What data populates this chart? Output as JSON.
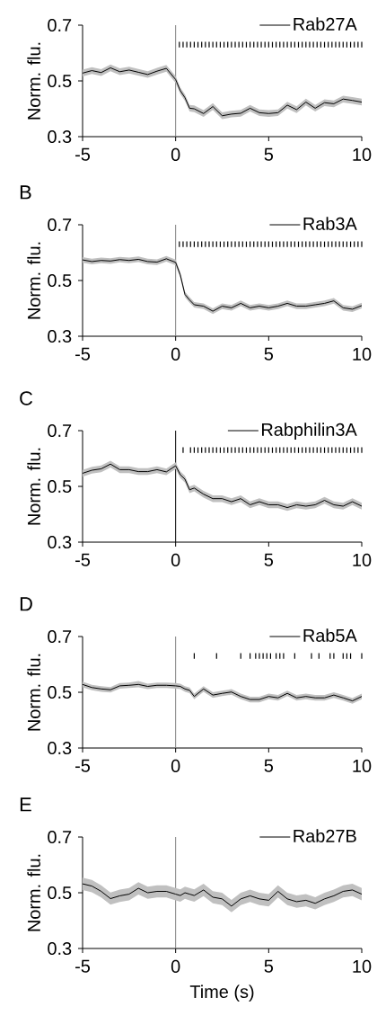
{
  "chart_data": [
    {
      "type": "line",
      "ylabel": "Norm. flu.",
      "legend": "top right",
      "xlim": [
        -5,
        10
      ],
      "ylim": [
        0.3,
        0.7
      ],
      "xticks": [
        -5,
        0,
        5,
        10
      ],
      "yticks": [
        0.3,
        0.5,
        0.7
      ],
      "ref_lines": [
        {
          "axis": "x",
          "value": 0,
          "color": "#808080"
        }
      ],
      "series": [
        {
          "name": "Rab27A",
          "color": "#000000",
          "x": [
            -5,
            -4.5,
            -4,
            -3.5,
            -3,
            -2.5,
            -2,
            -1.5,
            -1,
            -0.5,
            0,
            0.25,
            0.5,
            0.75,
            1,
            1.5,
            2,
            2.5,
            3,
            3.5,
            4,
            4.5,
            5,
            5.5,
            6,
            6.5,
            7,
            7.5,
            8,
            8.5,
            9,
            9.5,
            10
          ],
          "values": [
            0.528,
            0.537,
            0.53,
            0.547,
            0.533,
            0.539,
            0.531,
            0.523,
            0.535,
            0.545,
            0.505,
            0.465,
            0.44,
            0.402,
            0.4,
            0.383,
            0.408,
            0.375,
            0.381,
            0.384,
            0.402,
            0.386,
            0.383,
            0.386,
            0.413,
            0.397,
            0.424,
            0.402,
            0.422,
            0.418,
            0.435,
            0.43,
            0.424
          ],
          "lower": [
            0.516,
            0.525,
            0.518,
            0.535,
            0.521,
            0.527,
            0.519,
            0.511,
            0.523,
            0.533,
            0.493,
            0.453,
            0.428,
            0.39,
            0.388,
            0.371,
            0.396,
            0.363,
            0.369,
            0.372,
            0.39,
            0.374,
            0.371,
            0.374,
            0.401,
            0.385,
            0.412,
            0.39,
            0.41,
            0.406,
            0.423,
            0.418,
            0.412
          ],
          "upper": [
            0.54,
            0.549,
            0.542,
            0.559,
            0.545,
            0.551,
            0.543,
            0.535,
            0.547,
            0.557,
            0.517,
            0.477,
            0.452,
            0.414,
            0.412,
            0.395,
            0.42,
            0.387,
            0.393,
            0.396,
            0.414,
            0.398,
            0.395,
            0.398,
            0.425,
            0.409,
            0.436,
            0.414,
            0.434,
            0.43,
            0.447,
            0.442,
            0.436
          ]
        },
        {
          "type": "bar",
          "color": "#000000",
          "x": [
            0.2,
            0.4,
            0.6,
            0.8,
            1,
            1.2,
            1.4,
            1.6,
            1.8,
            2,
            2.2,
            2.4,
            2.6,
            2.8,
            3,
            3.2,
            3.4,
            3.6,
            3.8,
            4,
            4.2,
            4.4,
            4.6,
            4.8,
            5,
            5.2,
            5.4,
            5.6,
            5.8,
            6,
            6.2,
            6.4,
            6.6,
            6.8,
            7,
            7.2,
            7.4,
            7.6,
            7.8,
            8,
            8.2,
            8.4,
            8.6,
            8.8,
            9,
            9.2,
            9.4,
            9.6,
            9.8,
            10
          ],
          "base": [
            0.62,
            0.62,
            0.62,
            0.62,
            0.62,
            0.62,
            0.62,
            0.62,
            0.62,
            0.62,
            0.62,
            0.62,
            0.62,
            0.62,
            0.62,
            0.62,
            0.62,
            0.62,
            0.62,
            0.62,
            0.62,
            0.62,
            0.62,
            0.62,
            0.62,
            0.62,
            0.62,
            0.62,
            0.62,
            0.62,
            0.62,
            0.62,
            0.62,
            0.62,
            0.62,
            0.62,
            0.62,
            0.62,
            0.62,
            0.62,
            0.62,
            0.62,
            0.62,
            0.62,
            0.62,
            0.62,
            0.62,
            0.62,
            0.62,
            0.62
          ],
          "values": [
            0.02,
            0.02,
            0.02,
            0.02,
            0.02,
            0.02,
            0.02,
            0.02,
            0.02,
            0.02,
            0.02,
            0.02,
            0.02,
            0.02,
            0.02,
            0.02,
            0.02,
            0.02,
            0.02,
            0.02,
            0.02,
            0.02,
            0.02,
            0.02,
            0.02,
            0.02,
            0.02,
            0.02,
            0.02,
            0.02,
            0.02,
            0.02,
            0.02,
            0.02,
            0.02,
            0.02,
            0.02,
            0.02,
            0.02,
            0.02,
            0.02,
            0.02,
            0.02,
            0.02,
            0.02,
            0.02,
            0.02,
            0.02,
            0.02,
            0.02
          ]
        }
      ]
    },
    {
      "type": "line",
      "title": "B",
      "ylabel": "Norm. flu.",
      "legend": "top right",
      "xlim": [
        -5,
        10
      ],
      "ylim": [
        0.3,
        0.7
      ],
      "xticks": [
        -5,
        0,
        5,
        10
      ],
      "yticks": [
        0.3,
        0.5,
        0.7
      ],
      "ref_lines": [
        {
          "axis": "x",
          "value": 0,
          "color": "#808080"
        }
      ],
      "series": [
        {
          "name": "Rab3A",
          "color": "#000000",
          "x": [
            -5,
            -4.5,
            -4,
            -3.5,
            -3,
            -2.5,
            -2,
            -1.5,
            -1,
            -0.5,
            0,
            0.25,
            0.5,
            0.75,
            1,
            1.5,
            2,
            2.5,
            3,
            3.5,
            4,
            4.5,
            5,
            5.5,
            6,
            6.5,
            7,
            7.5,
            8,
            8.5,
            9,
            9.5,
            10
          ],
          "values": [
            0.574,
            0.568,
            0.572,
            0.57,
            0.575,
            0.572,
            0.576,
            0.568,
            0.566,
            0.578,
            0.565,
            0.52,
            0.45,
            0.43,
            0.413,
            0.408,
            0.39,
            0.408,
            0.402,
            0.418,
            0.402,
            0.408,
            0.402,
            0.408,
            0.418,
            0.408,
            0.408,
            0.413,
            0.418,
            0.427,
            0.402,
            0.397,
            0.41
          ],
          "lower": [
            0.564,
            0.558,
            0.562,
            0.56,
            0.565,
            0.562,
            0.566,
            0.558,
            0.556,
            0.568,
            0.555,
            0.51,
            0.44,
            0.42,
            0.403,
            0.398,
            0.38,
            0.398,
            0.392,
            0.408,
            0.392,
            0.398,
            0.392,
            0.398,
            0.408,
            0.398,
            0.398,
            0.403,
            0.408,
            0.417,
            0.392,
            0.387,
            0.4
          ],
          "upper": [
            0.584,
            0.578,
            0.582,
            0.58,
            0.585,
            0.582,
            0.586,
            0.578,
            0.576,
            0.588,
            0.575,
            0.53,
            0.46,
            0.44,
            0.423,
            0.418,
            0.4,
            0.418,
            0.412,
            0.428,
            0.412,
            0.418,
            0.412,
            0.418,
            0.428,
            0.418,
            0.418,
            0.423,
            0.428,
            0.437,
            0.412,
            0.407,
            0.42
          ]
        },
        {
          "type": "bar",
          "color": "#000000",
          "x": [
            0.2,
            0.4,
            0.6,
            0.8,
            1,
            1.2,
            1.4,
            1.6,
            1.8,
            2,
            2.2,
            2.4,
            2.6,
            2.8,
            3,
            3.2,
            3.4,
            3.6,
            3.8,
            4,
            4.2,
            4.4,
            4.6,
            4.8,
            5,
            5.2,
            5.4,
            5.6,
            5.8,
            6,
            6.2,
            6.4,
            6.6,
            6.8,
            7,
            7.2,
            7.4,
            7.6,
            7.8,
            8,
            8.2,
            8.4,
            8.6,
            8.8,
            9,
            9.2,
            9.4,
            9.6,
            9.8,
            10
          ],
          "base": [
            0.62,
            0.62,
            0.62,
            0.62,
            0.62,
            0.62,
            0.62,
            0.62,
            0.62,
            0.62,
            0.62,
            0.62,
            0.62,
            0.62,
            0.62,
            0.62,
            0.62,
            0.62,
            0.62,
            0.62,
            0.62,
            0.62,
            0.62,
            0.62,
            0.62,
            0.62,
            0.62,
            0.62,
            0.62,
            0.62,
            0.62,
            0.62,
            0.62,
            0.62,
            0.62,
            0.62,
            0.62,
            0.62,
            0.62,
            0.62,
            0.62,
            0.62,
            0.62,
            0.62,
            0.62,
            0.62,
            0.62,
            0.62,
            0.62,
            0.62
          ],
          "values": [
            0.02,
            0.02,
            0.02,
            0.02,
            0.02,
            0.02,
            0.02,
            0.02,
            0.02,
            0.02,
            0.02,
            0.02,
            0.02,
            0.02,
            0.02,
            0.02,
            0.02,
            0.02,
            0.02,
            0.02,
            0.02,
            0.02,
            0.02,
            0.02,
            0.02,
            0.02,
            0.02,
            0.02,
            0.02,
            0.02,
            0.02,
            0.02,
            0.02,
            0.02,
            0.02,
            0.02,
            0.02,
            0.02,
            0.02,
            0.02,
            0.02,
            0.02,
            0.02,
            0.02,
            0.02,
            0.02,
            0.02,
            0.02,
            0.02,
            0.02
          ]
        }
      ]
    },
    {
      "type": "line",
      "title": "C",
      "ylabel": "Norm. flu.",
      "legend": "top right",
      "xlim": [
        -5,
        10
      ],
      "ylim": [
        0.3,
        0.7
      ],
      "xticks": [
        -5,
        0,
        5,
        10
      ],
      "yticks": [
        0.3,
        0.5,
        0.7
      ],
      "ref_lines": [
        {
          "axis": "x",
          "value": 0,
          "color": "#000000"
        }
      ],
      "series": [
        {
          "name": "Rabphilin3A",
          "color": "#000000",
          "x": [
            -5,
            -4.5,
            -4,
            -3.5,
            -3,
            -2.5,
            -2,
            -1.5,
            -1,
            -0.5,
            0,
            0.25,
            0.5,
            0.75,
            1,
            1.5,
            2,
            2.5,
            3,
            3.5,
            4,
            4.5,
            5,
            5.5,
            6,
            6.5,
            7,
            7.5,
            8,
            8.5,
            9,
            9.5,
            10
          ],
          "values": [
            0.547,
            0.558,
            0.563,
            0.58,
            0.56,
            0.56,
            0.553,
            0.553,
            0.56,
            0.552,
            0.574,
            0.542,
            0.526,
            0.488,
            0.494,
            0.472,
            0.456,
            0.456,
            0.445,
            0.456,
            0.434,
            0.445,
            0.434,
            0.434,
            0.424,
            0.434,
            0.429,
            0.434,
            0.45,
            0.434,
            0.429,
            0.445,
            0.429
          ],
          "lower": [
            0.535,
            0.546,
            0.551,
            0.568,
            0.548,
            0.548,
            0.541,
            0.541,
            0.548,
            0.54,
            0.562,
            0.53,
            0.514,
            0.476,
            0.482,
            0.46,
            0.444,
            0.444,
            0.433,
            0.444,
            0.422,
            0.433,
            0.422,
            0.422,
            0.412,
            0.422,
            0.417,
            0.422,
            0.438,
            0.422,
            0.417,
            0.433,
            0.417
          ],
          "upper": [
            0.559,
            0.57,
            0.575,
            0.592,
            0.572,
            0.572,
            0.565,
            0.565,
            0.572,
            0.564,
            0.586,
            0.554,
            0.538,
            0.5,
            0.506,
            0.484,
            0.468,
            0.468,
            0.457,
            0.468,
            0.446,
            0.457,
            0.446,
            0.446,
            0.436,
            0.446,
            0.441,
            0.446,
            0.462,
            0.446,
            0.441,
            0.457,
            0.441
          ]
        },
        {
          "type": "bar",
          "color": "#000000",
          "x": [
            0.4,
            0.8,
            1,
            1.2,
            1.4,
            1.6,
            1.8,
            2,
            2.2,
            2.4,
            2.6,
            2.8,
            3,
            3.2,
            3.4,
            3.6,
            3.8,
            4,
            4.2,
            4.4,
            4.6,
            4.8,
            5,
            5.2,
            5.4,
            5.6,
            5.8,
            6,
            6.2,
            6.4,
            6.6,
            6.8,
            7,
            7.2,
            7.4,
            7.6,
            7.8,
            8,
            8.2,
            8.4,
            8.6,
            8.8,
            9,
            9.2,
            9.4,
            9.6,
            9.8,
            10
          ],
          "base": [
            0.62,
            0.62,
            0.62,
            0.62,
            0.62,
            0.62,
            0.62,
            0.62,
            0.62,
            0.62,
            0.62,
            0.62,
            0.62,
            0.62,
            0.62,
            0.62,
            0.62,
            0.62,
            0.62,
            0.62,
            0.62,
            0.62,
            0.62,
            0.62,
            0.62,
            0.62,
            0.62,
            0.62,
            0.62,
            0.62,
            0.62,
            0.62,
            0.62,
            0.62,
            0.62,
            0.62,
            0.62,
            0.62,
            0.62,
            0.62,
            0.62,
            0.62,
            0.62,
            0.62,
            0.62,
            0.62,
            0.62,
            0.62
          ],
          "values": [
            0.02,
            0.02,
            0.02,
            0.02,
            0.02,
            0.02,
            0.02,
            0.02,
            0.02,
            0.02,
            0.02,
            0.02,
            0.02,
            0.02,
            0.02,
            0.02,
            0.02,
            0.02,
            0.02,
            0.02,
            0.02,
            0.02,
            0.02,
            0.02,
            0.02,
            0.02,
            0.02,
            0.02,
            0.02,
            0.02,
            0.02,
            0.02,
            0.02,
            0.02,
            0.02,
            0.02,
            0.02,
            0.02,
            0.02,
            0.02,
            0.02,
            0.02,
            0.02,
            0.02,
            0.02,
            0.02,
            0.02,
            0.02
          ]
        }
      ]
    },
    {
      "type": "line",
      "title": "D",
      "ylabel": "Norm. flu.",
      "legend": "top right",
      "xlim": [
        -5,
        10
      ],
      "ylim": [
        0.3,
        0.7
      ],
      "xticks": [
        -5,
        0,
        5,
        10
      ],
      "yticks": [
        0.3,
        0.5,
        0.7
      ],
      "ref_lines": [
        {
          "axis": "x",
          "value": 0,
          "color": "#808080"
        }
      ],
      "series": [
        {
          "name": "Rab5A",
          "color": "#000000",
          "x": [
            -5,
            -4.5,
            -4,
            -3.5,
            -3,
            -2.5,
            -2,
            -1.5,
            -1,
            -0.5,
            0,
            0.25,
            0.5,
            0.75,
            1,
            1.5,
            2,
            2.5,
            3,
            3.5,
            4,
            4.5,
            5,
            5.5,
            6,
            6.5,
            7,
            7.5,
            8,
            8.5,
            9,
            9.5,
            10
          ],
          "values": [
            0.528,
            0.517,
            0.512,
            0.509,
            0.523,
            0.525,
            0.528,
            0.521,
            0.525,
            0.525,
            0.523,
            0.521,
            0.512,
            0.507,
            0.485,
            0.512,
            0.49,
            0.496,
            0.501,
            0.485,
            0.474,
            0.474,
            0.485,
            0.48,
            0.496,
            0.48,
            0.485,
            0.48,
            0.48,
            0.49,
            0.48,
            0.469,
            0.485
          ],
          "lower": [
            0.518,
            0.507,
            0.502,
            0.499,
            0.513,
            0.515,
            0.518,
            0.511,
            0.515,
            0.515,
            0.513,
            0.511,
            0.502,
            0.497,
            0.475,
            0.502,
            0.48,
            0.486,
            0.491,
            0.475,
            0.464,
            0.464,
            0.475,
            0.47,
            0.486,
            0.47,
            0.475,
            0.47,
            0.47,
            0.48,
            0.47,
            0.459,
            0.475
          ],
          "upper": [
            0.538,
            0.527,
            0.522,
            0.519,
            0.533,
            0.535,
            0.54,
            0.531,
            0.535,
            0.535,
            0.533,
            0.531,
            0.522,
            0.517,
            0.495,
            0.522,
            0.5,
            0.506,
            0.511,
            0.495,
            0.484,
            0.484,
            0.495,
            0.49,
            0.506,
            0.49,
            0.495,
            0.49,
            0.49,
            0.5,
            0.49,
            0.479,
            0.495
          ]
        },
        {
          "type": "bar",
          "color": "#000000",
          "x": [
            1.0,
            2.2,
            3.5,
            4.0,
            4.3,
            4.5,
            4.7,
            4.9,
            5.1,
            5.4,
            5.6,
            5.8,
            6.4,
            7.3,
            7.7,
            8.3,
            8.5,
            9.0,
            9.2,
            9.4,
            10.0
          ],
          "base": [
            0.62,
            0.62,
            0.62,
            0.62,
            0.62,
            0.62,
            0.62,
            0.62,
            0.62,
            0.62,
            0.62,
            0.62,
            0.62,
            0.62,
            0.62,
            0.62,
            0.62,
            0.62,
            0.62,
            0.62,
            0.62
          ],
          "values": [
            0.02,
            0.02,
            0.02,
            0.02,
            0.02,
            0.02,
            0.02,
            0.02,
            0.02,
            0.02,
            0.02,
            0.02,
            0.02,
            0.02,
            0.02,
            0.02,
            0.02,
            0.02,
            0.02,
            0.02,
            0.02
          ]
        }
      ]
    },
    {
      "type": "line",
      "title": "E",
      "xlabel": "Time (s)",
      "ylabel": "Norm. flu.",
      "legend": "top right",
      "xlim": [
        -5,
        10
      ],
      "ylim": [
        0.3,
        0.7
      ],
      "xticks": [
        -5,
        0,
        5,
        10
      ],
      "yticks": [
        0.3,
        0.5,
        0.7
      ],
      "ref_lines": [
        {
          "axis": "x",
          "value": 0,
          "color": "#808080"
        }
      ],
      "series": [
        {
          "name": "Rab27B",
          "color": "#000000",
          "x": [
            -5,
            -4.5,
            -4,
            -3.5,
            -3,
            -2.5,
            -2,
            -1.5,
            -1,
            -0.5,
            0,
            0.25,
            0.5,
            0.75,
            1,
            1.5,
            2,
            2.5,
            3,
            3.5,
            4,
            4.5,
            5,
            5.5,
            6,
            6.5,
            7,
            7.5,
            8,
            8.5,
            9,
            9.5,
            10
          ],
          "values": [
            0.532,
            0.524,
            0.505,
            0.479,
            0.489,
            0.495,
            0.516,
            0.5,
            0.505,
            0.505,
            0.495,
            0.49,
            0.5,
            0.495,
            0.49,
            0.51,
            0.484,
            0.478,
            0.452,
            0.478,
            0.489,
            0.478,
            0.473,
            0.505,
            0.478,
            0.468,
            0.473,
            0.462,
            0.478,
            0.489,
            0.505,
            0.51,
            0.495
          ],
          "lower": [
            0.51,
            0.502,
            0.483,
            0.457,
            0.467,
            0.473,
            0.494,
            0.478,
            0.483,
            0.483,
            0.473,
            0.468,
            0.478,
            0.473,
            0.468,
            0.488,
            0.462,
            0.456,
            0.43,
            0.456,
            0.467,
            0.456,
            0.451,
            0.483,
            0.456,
            0.446,
            0.451,
            0.44,
            0.456,
            0.467,
            0.483,
            0.488,
            0.473
          ],
          "upper": [
            0.554,
            0.546,
            0.527,
            0.501,
            0.511,
            0.517,
            0.538,
            0.522,
            0.527,
            0.527,
            0.517,
            0.512,
            0.522,
            0.517,
            0.512,
            0.532,
            0.506,
            0.5,
            0.474,
            0.5,
            0.511,
            0.5,
            0.495,
            0.527,
            0.5,
            0.49,
            0.495,
            0.484,
            0.5,
            0.511,
            0.527,
            0.532,
            0.517
          ]
        }
      ]
    }
  ]
}
